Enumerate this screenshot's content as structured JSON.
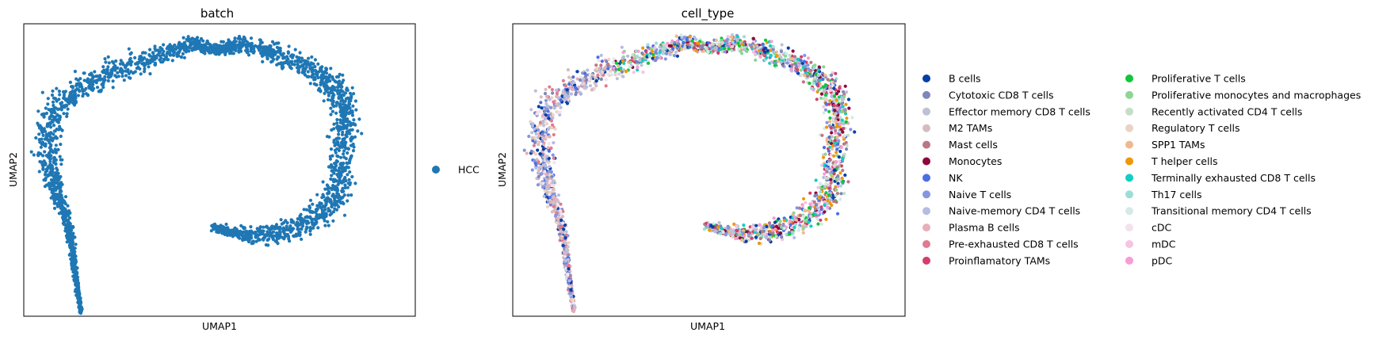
{
  "chart_data": [
    {
      "type": "scatter",
      "title": "batch",
      "xlabel": "UMAP1",
      "ylabel": "UMAP2",
      "grid": false,
      "ticks": false,
      "legend_position": "right",
      "legend": [
        {
          "label": "HCC",
          "color": "#1f77b4"
        }
      ]
    },
    {
      "type": "scatter",
      "title": "cell_type",
      "xlabel": "UMAP1",
      "ylabel": "UMAP2",
      "grid": false,
      "ticks": false,
      "legend_position": "right",
      "legend": [
        {
          "label": "B cells",
          "color": "#023fa5"
        },
        {
          "label": "Cytotoxic CD8 T cells",
          "color": "#7d87b9"
        },
        {
          "label": "Effector memory CD8 T cells",
          "color": "#bec1d4"
        },
        {
          "label": "M2 TAMs",
          "color": "#d6bcc0"
        },
        {
          "label": "Mast cells",
          "color": "#bb7784"
        },
        {
          "label": "Monocytes",
          "color": "#8e063b"
        },
        {
          "label": "NK",
          "color": "#4a6fe3"
        },
        {
          "label": "Naive T cells",
          "color": "#8595e1"
        },
        {
          "label": "Naive-memory CD4 T cells",
          "color": "#b5bbe3"
        },
        {
          "label": "Plasma B cells",
          "color": "#e6afb9"
        },
        {
          "label": "Pre-exhausted CD8 T cells",
          "color": "#e07b91"
        },
        {
          "label": "Proinflamatory TAMs",
          "color": "#d33f6a"
        },
        {
          "label": "Proliferative T cells",
          "color": "#11c638"
        },
        {
          "label": "Proliferative monocytes and macrophages",
          "color": "#8dd593"
        },
        {
          "label": "Recently activated CD4 T cells",
          "color": "#c6dec7"
        },
        {
          "label": "Regulatory T cells",
          "color": "#ead3c6"
        },
        {
          "label": "SPP1 TAMs",
          "color": "#f0b98d"
        },
        {
          "label": "T helper cells",
          "color": "#ef9708"
        },
        {
          "label": "Terminally exhausted CD8 T cells",
          "color": "#0fcfc0"
        },
        {
          "label": "Th17 cells",
          "color": "#9cded6"
        },
        {
          "label": "Transitional memory CD4 T cells",
          "color": "#d5eae7"
        },
        {
          "label": "cDC",
          "color": "#f3e1eb"
        },
        {
          "label": "mDC",
          "color": "#f6c4e1"
        },
        {
          "label": "pDC",
          "color": "#f79cd4"
        }
      ]
    }
  ]
}
